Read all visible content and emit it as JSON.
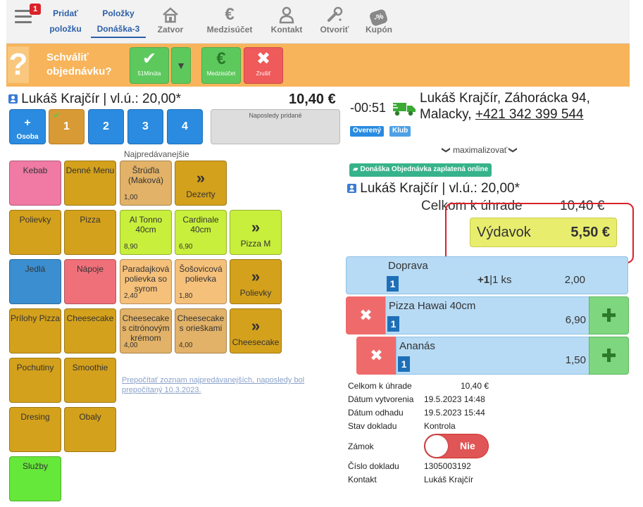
{
  "toolbar": {
    "badge": "1",
    "add_item_line1": "Pridať",
    "add_item_line2": "položku",
    "items_line1": "Položky",
    "items_line2": "Donáška-3",
    "tools": [
      {
        "label": "Zatvor",
        "icon": "house-icon"
      },
      {
        "label": "Medzisúčet",
        "icon": "euro-icon"
      },
      {
        "label": "Kontakt",
        "icon": "person-icon"
      },
      {
        "label": "Otvoriť",
        "icon": "wrench-icon"
      },
      {
        "label": "Kupón",
        "icon": "coupon-icon"
      }
    ],
    "euro_glyph": "€",
    "coupon_glyph": "-%"
  },
  "approve": {
    "question": "?",
    "line1": "Schváliť",
    "line2": "objednávku?",
    "confirm_label": "51Minúta",
    "subtotal_label": "Medzisúčet",
    "cancel_label": "Zrušiť",
    "check_glyph": "✔",
    "euro_glyph": "€",
    "x_glyph": "✖",
    "dropdown_glyph": "▼",
    "colors": {
      "bar": "#f7b45a",
      "confirm": "#5dc95d",
      "subtotal": "#5dc95d",
      "cancel": "#ef5a5a"
    }
  },
  "left": {
    "customer": "Lukáš Krajčír | vl.ú.: 20,00*",
    "total": "10,40 €",
    "person_plus": "+",
    "person_label": "Osoba",
    "persons": [
      "1",
      "2",
      "3",
      "4"
    ],
    "active_check": "✔",
    "recent_label": "Naposledy pridané",
    "best_title": "Najpredávanejšie",
    "recalc_text": "Prepočítať zoznam najpredávanejších, naposledy bol prepočítaný 10.3.2023.",
    "arrow_glyph": "»",
    "tiles": [
      {
        "label": "Kebab",
        "price": "",
        "arrow": false,
        "color": "#f07aa3"
      },
      {
        "label": "Denné Menu",
        "price": "",
        "arrow": false,
        "color": "#d4a11c"
      },
      {
        "label": "Štrúďla (Maková)",
        "price": "1,00",
        "arrow": false,
        "color": "#e2b268"
      },
      {
        "label": "Dezerty",
        "price": "",
        "arrow": true,
        "color": "#d4a11c"
      },
      {
        "label": "Polievky",
        "price": "",
        "arrow": false,
        "color": "#d4a11c"
      },
      {
        "label": "Pizza",
        "price": "",
        "arrow": false,
        "color": "#d4a11c"
      },
      {
        "label": "Al Tonno 40cm",
        "price": "8,90",
        "arrow": false,
        "color": "#c8ef3c"
      },
      {
        "label": "Cardinale 40cm",
        "price": "6,90",
        "arrow": false,
        "color": "#c8ef3c"
      },
      {
        "label": "Pizza M",
        "price": "",
        "arrow": true,
        "color": "#c8ef3c"
      },
      {
        "label": "Jedlá",
        "price": "",
        "arrow": false,
        "color": "#3b8fd1"
      },
      {
        "label": "Nápoje",
        "price": "",
        "arrow": false,
        "color": "#f0707a"
      },
      {
        "label": "Paradajková polievka so syrom",
        "price": "2,40",
        "arrow": false,
        "color": "#f5c07a"
      },
      {
        "label": "Šošovicová polievka",
        "price": "1,80",
        "arrow": false,
        "color": "#f5c07a"
      },
      {
        "label": "Polievky",
        "price": "",
        "arrow": true,
        "color": "#d4a11c"
      },
      {
        "label": "Prílohy Pizza",
        "price": "",
        "arrow": false,
        "color": "#d4a11c"
      },
      {
        "label": "Cheesecake",
        "price": "",
        "arrow": false,
        "color": "#d4a11c"
      },
      {
        "label": "Cheesecake s citrónovým krémom",
        "price": "4,00",
        "arrow": false,
        "color": "#e2b268"
      },
      {
        "label": "Cheesecake s orieškami",
        "price": "4,00",
        "arrow": false,
        "color": "#e2b268"
      },
      {
        "label": "Cheesecake",
        "price": "",
        "arrow": true,
        "color": "#d4a11c"
      },
      {
        "label": "Pochutiny",
        "price": "",
        "arrow": false,
        "color": "#d4a11c"
      },
      {
        "label": "Smoothie",
        "price": "",
        "arrow": false,
        "color": "#d4a11c"
      },
      {
        "label": "Dresing",
        "price": "",
        "arrow": false,
        "color": "#d4a11c"
      },
      {
        "label": "Obaly",
        "price": "",
        "arrow": false,
        "color": "#d4a11c"
      },
      {
        "label": "Služby",
        "price": "",
        "arrow": false,
        "color": "#66e83a"
      }
    ]
  },
  "right": {
    "time": "-00:51",
    "address_line1": "Lukáš Krajčír, Záhorácka 94,",
    "address_line2": "Malacky,",
    "phone": "+421 342 399 544",
    "tag_verified": "Overený",
    "tag_club": "Klub",
    "maximize_glyph": "❯",
    "maximize": "maximalizovať",
    "paid_badge": "Donáška Objednávka zaplatená online",
    "customer": "Lukáš Krajčír | vl.ú.: 20,00*",
    "total_label": "Celkom k úhrade",
    "total_value": "10,40 €",
    "expense_label": "Výdavok",
    "expense_value": "5,50 €",
    "del_glyph": "✖",
    "add_glyph": "✚",
    "items": [
      {
        "name": "Doprava",
        "qty": "1",
        "extra_plus": "+1",
        "extra": "1 ks",
        "price": "2,00"
      },
      {
        "name": "Pizza Hawai 40cm",
        "qty": "1",
        "price": "6,90"
      },
      {
        "name": "Ananás",
        "qty": "1",
        "price": "1,50"
      }
    ],
    "info": [
      {
        "label": "Celkom k úhrade",
        "value": "10,40 €"
      },
      {
        "label": "Dátum vytvorenia",
        "value": "19.5.2023 14:48"
      },
      {
        "label": "Dátum odhadu",
        "value": "19.5.2023 15:44"
      },
      {
        "label": "Stav dokladu",
        "value": "Kontrola"
      },
      {
        "label": "Zámok",
        "value": "Nie"
      },
      {
        "label": "Číslo dokladu",
        "value": "1305003192"
      },
      {
        "label": "Kontakt",
        "value": "Lukáš Krajčír"
      }
    ]
  }
}
